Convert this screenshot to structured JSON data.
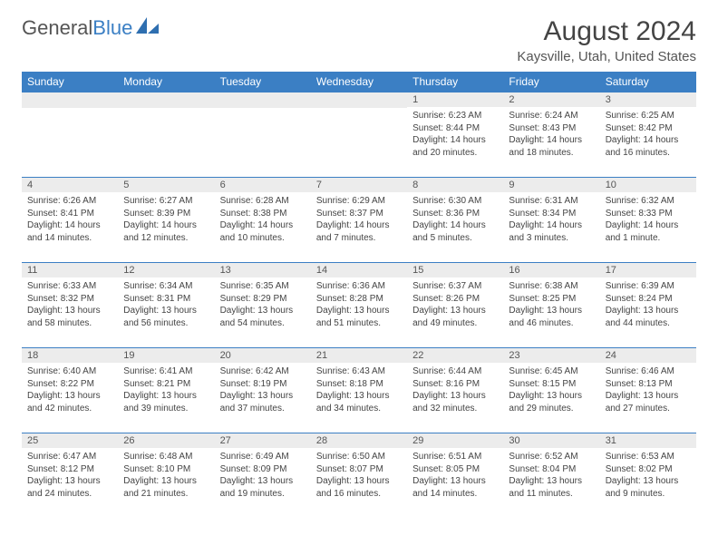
{
  "logo": {
    "word1": "General",
    "word2": "Blue"
  },
  "title": "August 2024",
  "location": "Kaysville, Utah, United States",
  "colors": {
    "header_bg": "#3b7fc4",
    "header_text": "#ffffff",
    "daynum_bg": "#ececec",
    "border": "#3b7fc4",
    "body_text": "#444444"
  },
  "weekdays": [
    "Sunday",
    "Monday",
    "Tuesday",
    "Wednesday",
    "Thursday",
    "Friday",
    "Saturday"
  ],
  "weeks": [
    [
      null,
      null,
      null,
      null,
      {
        "n": "1",
        "rise": "6:23 AM",
        "set": "8:44 PM",
        "dl": "14 hours and 20 minutes."
      },
      {
        "n": "2",
        "rise": "6:24 AM",
        "set": "8:43 PM",
        "dl": "14 hours and 18 minutes."
      },
      {
        "n": "3",
        "rise": "6:25 AM",
        "set": "8:42 PM",
        "dl": "14 hours and 16 minutes."
      }
    ],
    [
      {
        "n": "4",
        "rise": "6:26 AM",
        "set": "8:41 PM",
        "dl": "14 hours and 14 minutes."
      },
      {
        "n": "5",
        "rise": "6:27 AM",
        "set": "8:39 PM",
        "dl": "14 hours and 12 minutes."
      },
      {
        "n": "6",
        "rise": "6:28 AM",
        "set": "8:38 PM",
        "dl": "14 hours and 10 minutes."
      },
      {
        "n": "7",
        "rise": "6:29 AM",
        "set": "8:37 PM",
        "dl": "14 hours and 7 minutes."
      },
      {
        "n": "8",
        "rise": "6:30 AM",
        "set": "8:36 PM",
        "dl": "14 hours and 5 minutes."
      },
      {
        "n": "9",
        "rise": "6:31 AM",
        "set": "8:34 PM",
        "dl": "14 hours and 3 minutes."
      },
      {
        "n": "10",
        "rise": "6:32 AM",
        "set": "8:33 PM",
        "dl": "14 hours and 1 minute."
      }
    ],
    [
      {
        "n": "11",
        "rise": "6:33 AM",
        "set": "8:32 PM",
        "dl": "13 hours and 58 minutes."
      },
      {
        "n": "12",
        "rise": "6:34 AM",
        "set": "8:31 PM",
        "dl": "13 hours and 56 minutes."
      },
      {
        "n": "13",
        "rise": "6:35 AM",
        "set": "8:29 PM",
        "dl": "13 hours and 54 minutes."
      },
      {
        "n": "14",
        "rise": "6:36 AM",
        "set": "8:28 PM",
        "dl": "13 hours and 51 minutes."
      },
      {
        "n": "15",
        "rise": "6:37 AM",
        "set": "8:26 PM",
        "dl": "13 hours and 49 minutes."
      },
      {
        "n": "16",
        "rise": "6:38 AM",
        "set": "8:25 PM",
        "dl": "13 hours and 46 minutes."
      },
      {
        "n": "17",
        "rise": "6:39 AM",
        "set": "8:24 PM",
        "dl": "13 hours and 44 minutes."
      }
    ],
    [
      {
        "n": "18",
        "rise": "6:40 AM",
        "set": "8:22 PM",
        "dl": "13 hours and 42 minutes."
      },
      {
        "n": "19",
        "rise": "6:41 AM",
        "set": "8:21 PM",
        "dl": "13 hours and 39 minutes."
      },
      {
        "n": "20",
        "rise": "6:42 AM",
        "set": "8:19 PM",
        "dl": "13 hours and 37 minutes."
      },
      {
        "n": "21",
        "rise": "6:43 AM",
        "set": "8:18 PM",
        "dl": "13 hours and 34 minutes."
      },
      {
        "n": "22",
        "rise": "6:44 AM",
        "set": "8:16 PM",
        "dl": "13 hours and 32 minutes."
      },
      {
        "n": "23",
        "rise": "6:45 AM",
        "set": "8:15 PM",
        "dl": "13 hours and 29 minutes."
      },
      {
        "n": "24",
        "rise": "6:46 AM",
        "set": "8:13 PM",
        "dl": "13 hours and 27 minutes."
      }
    ],
    [
      {
        "n": "25",
        "rise": "6:47 AM",
        "set": "8:12 PM",
        "dl": "13 hours and 24 minutes."
      },
      {
        "n": "26",
        "rise": "6:48 AM",
        "set": "8:10 PM",
        "dl": "13 hours and 21 minutes."
      },
      {
        "n": "27",
        "rise": "6:49 AM",
        "set": "8:09 PM",
        "dl": "13 hours and 19 minutes."
      },
      {
        "n": "28",
        "rise": "6:50 AM",
        "set": "8:07 PM",
        "dl": "13 hours and 16 minutes."
      },
      {
        "n": "29",
        "rise": "6:51 AM",
        "set": "8:05 PM",
        "dl": "13 hours and 14 minutes."
      },
      {
        "n": "30",
        "rise": "6:52 AM",
        "set": "8:04 PM",
        "dl": "13 hours and 11 minutes."
      },
      {
        "n": "31",
        "rise": "6:53 AM",
        "set": "8:02 PM",
        "dl": "13 hours and 9 minutes."
      }
    ]
  ],
  "labels": {
    "sunrise": "Sunrise:",
    "sunset": "Sunset:",
    "daylight": "Daylight:"
  }
}
